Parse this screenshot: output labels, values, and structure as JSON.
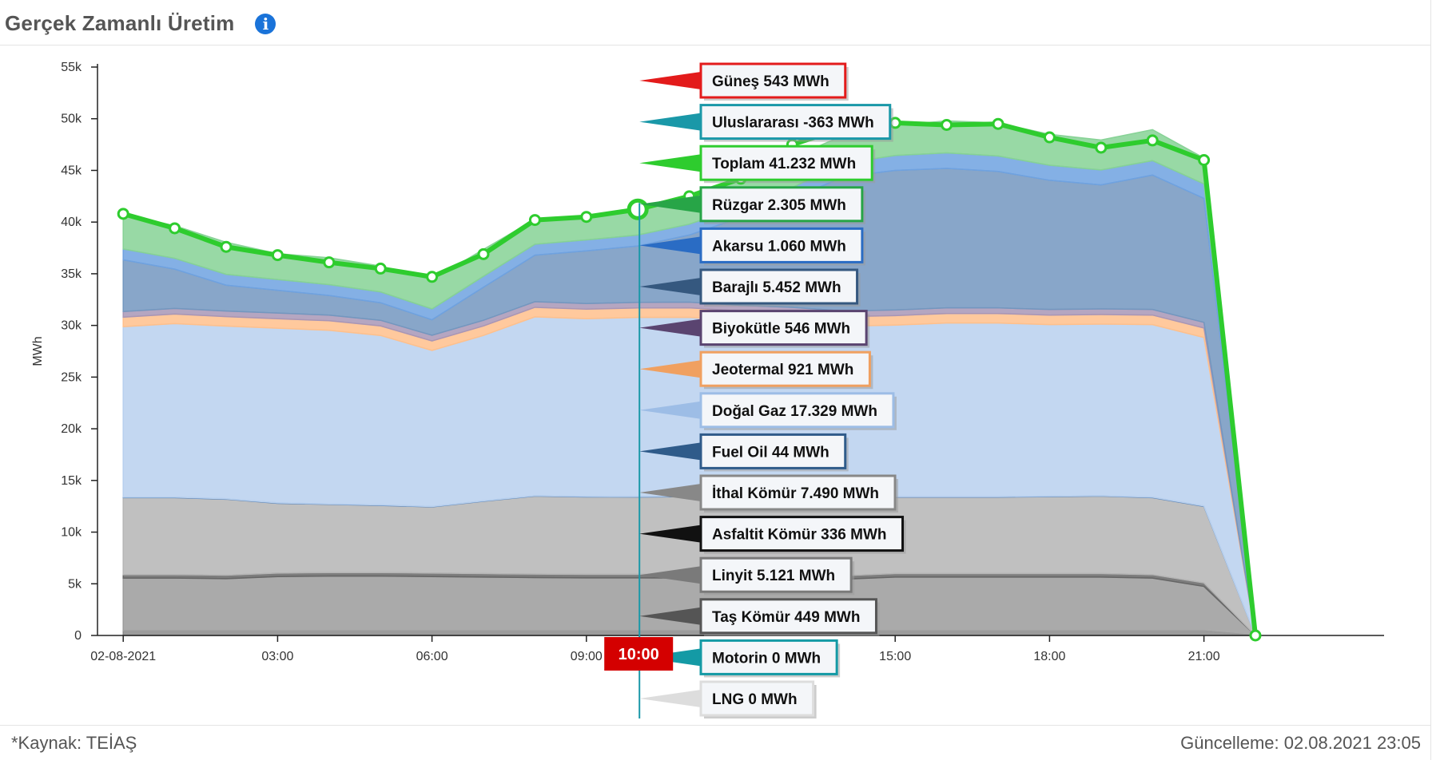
{
  "header": {
    "title": "Gerçek Zamanlı Üretim",
    "info_icon": "info-icon"
  },
  "footer": {
    "source": "*Kaynak: TEİAŞ",
    "updated": "Güncelleme: 02.08.2021 23:05"
  },
  "chart_data": {
    "type": "area",
    "stacked": true,
    "ylabel": "MWh",
    "ylim": [
      0,
      55000
    ],
    "yticks": [
      {
        "v": 0,
        "label": "0"
      },
      {
        "v": 5000,
        "label": "5k"
      },
      {
        "v": 10000,
        "label": "10k"
      },
      {
        "v": 15000,
        "label": "15k"
      },
      {
        "v": 20000,
        "label": "20k"
      },
      {
        "v": 25000,
        "label": "25k"
      },
      {
        "v": 30000,
        "label": "30k"
      },
      {
        "v": 35000,
        "label": "35k"
      },
      {
        "v": 40000,
        "label": "40k"
      },
      {
        "v": 45000,
        "label": "45k"
      },
      {
        "v": 50000,
        "label": "50k"
      },
      {
        "v": 55000,
        "label": "55k"
      }
    ],
    "xlim": [
      -0.5,
      24.5
    ],
    "xticks": [
      {
        "v": 0,
        "label": "02-08-2021"
      },
      {
        "v": 3,
        "label": "03:00"
      },
      {
        "v": 6,
        "label": "06:00"
      },
      {
        "v": 9,
        "label": "09:00"
      },
      {
        "v": 15,
        "label": "15:00"
      },
      {
        "v": 18,
        "label": "18:00"
      },
      {
        "v": 21,
        "label": "21:00"
      }
    ],
    "hours": [
      0,
      1,
      2,
      3,
      4,
      5,
      6,
      7,
      8,
      9,
      10,
      11,
      12,
      13,
      14,
      15,
      16,
      17,
      18,
      19,
      20,
      21,
      22
    ],
    "highlight": {
      "x": 10,
      "label": "10:00"
    },
    "series": [
      {
        "name": "Taş Kömür",
        "value_label": "449 MWh",
        "color": "#8a8a8a",
        "values": [
          449,
          449,
          449,
          449,
          449,
          449,
          449,
          449,
          449,
          449,
          449,
          449,
          449,
          449,
          449,
          449,
          449,
          449,
          449,
          449,
          449,
          449,
          0
        ]
      },
      {
        "name": "Linyit",
        "value_label": "5.121 MWh",
        "color": "#9b9b9b",
        "values": [
          5100,
          5100,
          5050,
          5250,
          5300,
          5300,
          5250,
          5200,
          5150,
          5120,
          5121,
          5100,
          5050,
          5000,
          5000,
          5200,
          5200,
          5200,
          5200,
          5200,
          5100,
          4300,
          0
        ]
      },
      {
        "name": "Asfaltit Kömür",
        "value_label": "336 MWh",
        "color": "#666666",
        "values": [
          336,
          336,
          336,
          336,
          336,
          336,
          336,
          336,
          336,
          336,
          336,
          336,
          336,
          336,
          336,
          336,
          336,
          336,
          336,
          336,
          336,
          336,
          0
        ]
      },
      {
        "name": "İthal Kömür",
        "value_label": "7.490 MWh",
        "color": "#b5b5b5",
        "values": [
          7450,
          7450,
          7350,
          6750,
          6600,
          6500,
          6400,
          7000,
          7550,
          7500,
          7490,
          7550,
          7600,
          7550,
          7500,
          7400,
          7400,
          7400,
          7450,
          7500,
          7450,
          7400,
          0
        ]
      },
      {
        "name": "Fuel Oil",
        "value_label": "44 MWh",
        "color": "#5e86b8",
        "values": [
          44,
          44,
          44,
          44,
          44,
          44,
          44,
          44,
          44,
          44,
          44,
          44,
          44,
          44,
          44,
          44,
          44,
          44,
          44,
          44,
          44,
          44,
          0
        ]
      },
      {
        "name": "Doğal Gaz",
        "value_label": "17.329 MWh",
        "color": "#b8d0ee",
        "values": [
          16500,
          16800,
          16700,
          16900,
          16800,
          16400,
          15100,
          16000,
          17300,
          17200,
          17329,
          17300,
          17000,
          16900,
          16600,
          16600,
          16800,
          16800,
          16600,
          16600,
          16700,
          16300,
          0
        ]
      },
      {
        "name": "Jeotermal",
        "value_label": "921 MWh",
        "color": "#ffc08c",
        "values": [
          921,
          921,
          921,
          921,
          921,
          921,
          921,
          921,
          921,
          921,
          921,
          921,
          921,
          921,
          921,
          921,
          921,
          921,
          921,
          921,
          921,
          921,
          0
        ]
      },
      {
        "name": "Biyokütle",
        "value_label": "546 MWh",
        "color": "#a896b6",
        "values": [
          546,
          546,
          546,
          546,
          546,
          546,
          546,
          546,
          546,
          546,
          546,
          546,
          546,
          546,
          546,
          546,
          546,
          546,
          546,
          546,
          546,
          546,
          0
        ]
      },
      {
        "name": "Barajlı",
        "value_label": "5.452 MWh",
        "color": "#7397bf",
        "values": [
          5000,
          3800,
          2500,
          2200,
          1900,
          1700,
          1500,
          3200,
          4500,
          5100,
          5452,
          6500,
          8500,
          10500,
          13000,
          13500,
          13500,
          13200,
          12500,
          12000,
          13000,
          12000,
          0
        ]
      },
      {
        "name": "Akarsu",
        "value_label": "1.060 MWh",
        "color": "#6fa2e0",
        "values": [
          1050,
          1050,
          1050,
          1050,
          1050,
          1050,
          1050,
          1060,
          1060,
          1060,
          1060,
          1050,
          1050,
          1100,
          1300,
          1450,
          1500,
          1500,
          1450,
          1450,
          1400,
          1400,
          0
        ]
      },
      {
        "name": "Rüzgar",
        "value_label": "2.305 MWh",
        "color": "#86d295",
        "values": [
          3350,
          3150,
          3100,
          2500,
          2600,
          2500,
          2800,
          2600,
          2400,
          2350,
          2305,
          2600,
          2800,
          2900,
          2700,
          2900,
          3100,
          3200,
          3000,
          2900,
          3000,
          2500,
          0
        ]
      },
      {
        "name": "Uluslararası",
        "value_label": "-363 MWh",
        "color": "#1a98a8",
        "values": []
      },
      {
        "name": "Güneş",
        "value_label": "543 MWh",
        "color": "#e31b1b",
        "values": []
      }
    ],
    "total": {
      "name": "Toplam",
      "value_label": "41.232 MWh",
      "color": "#2ecc2e",
      "values": [
        40800,
        39400,
        37600,
        36800,
        36100,
        35500,
        34700,
        36900,
        40200,
        40500,
        41232,
        42500,
        44200,
        47500,
        49100,
        49600,
        49400,
        49500,
        48200,
        47200,
        47900,
        46000,
        0
      ]
    },
    "tooltip_order": [
      {
        "name": "Güneş",
        "value_label": "543 MWh",
        "color": "#e31b1b"
      },
      {
        "name": "Uluslararası",
        "value_label": "-363 MWh",
        "color": "#1a98a8"
      },
      {
        "name": "Toplam",
        "value_label": "41.232 MWh",
        "color": "#2ecc2e"
      },
      {
        "name": "Rüzgar",
        "value_label": "2.305 MWh",
        "color": "#27a547"
      },
      {
        "name": "Akarsu",
        "value_label": "1.060 MWh",
        "color": "#2a6cc4"
      },
      {
        "name": "Barajlı",
        "value_label": "5.452 MWh",
        "color": "#35587f"
      },
      {
        "name": "Biyokütle",
        "value_label": "546 MWh",
        "color": "#5a4470"
      },
      {
        "name": "Jeotermal",
        "value_label": "921 MWh",
        "color": "#f0a060"
      },
      {
        "name": "Doğal Gaz",
        "value_label": "17.329 MWh",
        "color": "#9dbde6"
      },
      {
        "name": "Fuel Oil",
        "value_label": "44 MWh",
        "color": "#2f5b8a"
      },
      {
        "name": "İthal Kömür",
        "value_label": "7.490 MWh",
        "color": "#888888"
      },
      {
        "name": "Asfaltit Kömür",
        "value_label": "336 MWh",
        "color": "#111111"
      },
      {
        "name": "Linyit",
        "value_label": "5.121 MWh",
        "color": "#7a7a7a"
      },
      {
        "name": "Taş Kömür",
        "value_label": "449 MWh",
        "color": "#555555"
      },
      {
        "name": "Motorin",
        "value_label": "0 MWh",
        "color": "#149aa5"
      },
      {
        "name": "LNG",
        "value_label": "0 MWh",
        "color": "#dddddd"
      }
    ]
  }
}
